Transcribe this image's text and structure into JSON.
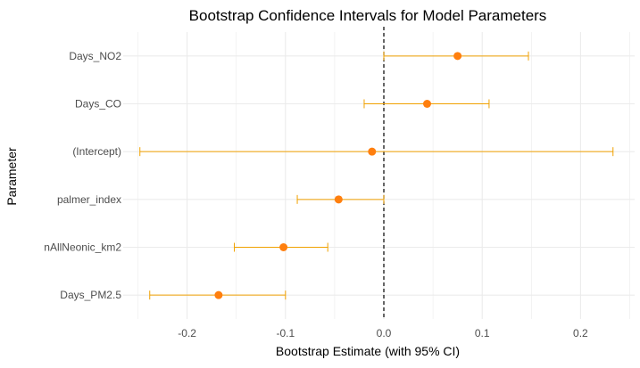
{
  "chart_data": {
    "type": "errorbar",
    "title": "Bootstrap Confidence Intervals for Model Parameters",
    "xlabel": "Bootstrap Estimate (with 95% CI)",
    "ylabel": "Parameter",
    "xlim": [
      -0.265,
      0.255
    ],
    "x_ticks": [
      -0.2,
      -0.1,
      0.0,
      0.1,
      0.2
    ],
    "x_tick_labels": [
      "-0.2",
      "-0.1",
      "0.0",
      "0.1",
      "0.2"
    ],
    "reference_line": 0,
    "grid": true,
    "categories": [
      "Days_NO2",
      "Days_CO",
      "(Intercept)",
      "palmer_index",
      "nAllNeonic_km2",
      "Days_PM2.5"
    ],
    "series": [
      {
        "estimates": [
          0.075,
          0.044,
          -0.012,
          -0.046,
          -0.102,
          -0.168
        ],
        "lower": [
          0.0,
          -0.02,
          -0.248,
          -0.088,
          -0.152,
          -0.238
        ],
        "upper": [
          0.147,
          0.107,
          0.233,
          0.0,
          -0.057,
          -0.1
        ]
      }
    ],
    "colors": {
      "point": "#ff7f0e",
      "errorbar": "#f0a100",
      "reference_line": "#000000",
      "grid": "#ebebeb",
      "text": "#4d4d4d",
      "title": "#000000"
    }
  }
}
